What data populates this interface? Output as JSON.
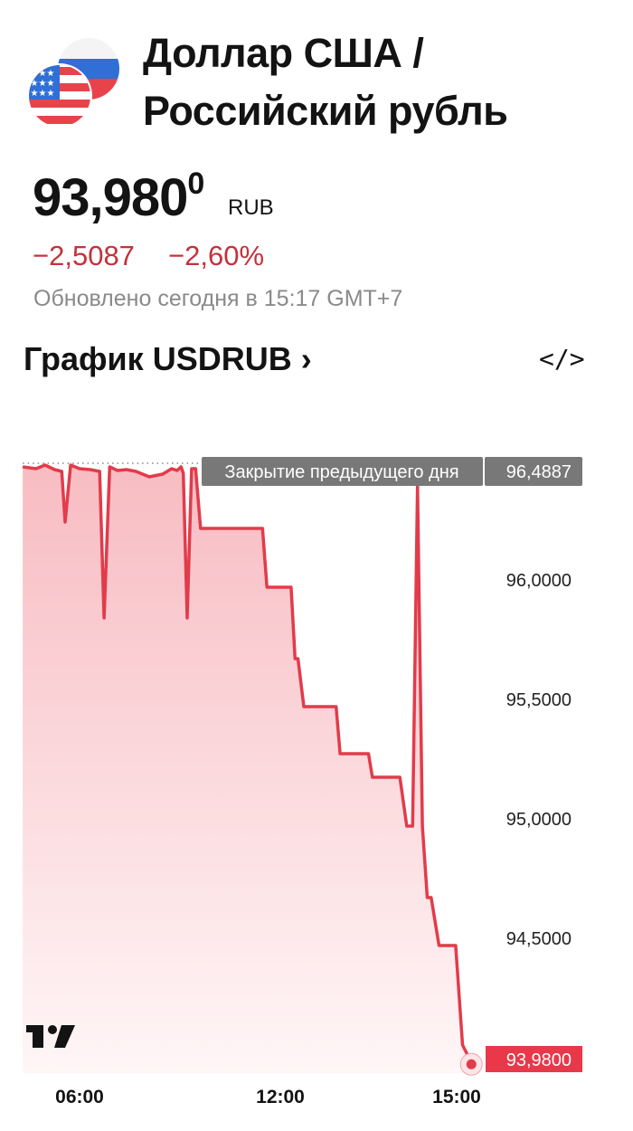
{
  "header": {
    "title_line1": "Доллар США /",
    "title_line2": "Российский рубль",
    "price_main": "93,980",
    "price_super": "0",
    "currency": "RUB",
    "change_abs": "−2,5087",
    "change_pct": "−2,60%",
    "updated": "Обновлено сегодня в 15:17 GMT+7",
    "flags": [
      "us-flag-icon",
      "ru-flag-icon"
    ]
  },
  "chart_section": {
    "title": "График USDRUB",
    "chevron": "›",
    "embed_icon": "</>"
  },
  "colors": {
    "line": "#e23b4a",
    "negative": "#c4313c",
    "label_grey": "#787878",
    "last_price_bg": "#e8384a"
  },
  "chart_data": {
    "type": "area",
    "x_ticks": [
      "06:00",
      "12:00",
      "15:00"
    ],
    "y_ticks": [
      "96,0000",
      "95,5000",
      "95,0000",
      "94,5000"
    ],
    "y_tick_values": [
      96.0,
      95.5,
      95.0,
      94.5
    ],
    "previous_close": {
      "label": "Закрытие предыдущего дня",
      "value": 96.4887,
      "value_text": "96,4887"
    },
    "last_price": {
      "value": 93.98,
      "value_text": "93,9800"
    },
    "watermark": "TV",
    "grid": false,
    "points": [
      [
        "04:18",
        96.4735
      ],
      [
        "04:42",
        96.4659
      ],
      [
        "04:58",
        96.4811
      ],
      [
        "05:15",
        96.4621
      ],
      [
        "05:28",
        96.4545
      ],
      [
        "05:34",
        96.2424
      ],
      [
        "05:44",
        96.4811
      ],
      [
        "06:00",
        96.4659
      ],
      [
        "06:19",
        96.4621
      ],
      [
        "06:36",
        96.4545
      ],
      [
        "06:44",
        95.8409
      ],
      [
        "06:54",
        96.4735
      ],
      [
        "07:08",
        96.4583
      ],
      [
        "07:24",
        96.4621
      ],
      [
        "07:41",
        96.4545
      ],
      [
        "08:05",
        96.4318
      ],
      [
        "08:29",
        96.4432
      ],
      [
        "08:45",
        96.4659
      ],
      [
        "08:55",
        96.4583
      ],
      [
        "09:02",
        96.4735
      ],
      [
        "09:06",
        96.447
      ],
      [
        "09:13",
        95.8409
      ],
      [
        "09:21",
        96.4659
      ],
      [
        "09:28",
        96.4659
      ],
      [
        "09:37",
        96.2159
      ],
      [
        "11:28",
        96.2159
      ],
      [
        "11:36",
        95.9697
      ],
      [
        "12:11",
        95.9697
      ],
      [
        "12:15",
        95.6705
      ],
      [
        "12:18",
        95.6705
      ],
      [
        "12:24",
        95.4697
      ],
      [
        "12:57",
        95.4697
      ],
      [
        "13:01",
        95.2727
      ],
      [
        "13:30",
        95.2727
      ],
      [
        "13:34",
        95.1742
      ],
      [
        "14:02",
        95.1742
      ],
      [
        "14:09",
        94.9697
      ],
      [
        "14:15",
        94.9697
      ],
      [
        "14:20",
        96.3939
      ],
      [
        "14:25",
        94.9697
      ],
      [
        "14:30",
        94.6705
      ],
      [
        "14:34",
        94.6705
      ],
      [
        "14:42",
        94.4697
      ],
      [
        "14:59",
        94.4697
      ],
      [
        "15:06",
        94.053
      ],
      [
        "15:15",
        93.98
      ]
    ]
  }
}
